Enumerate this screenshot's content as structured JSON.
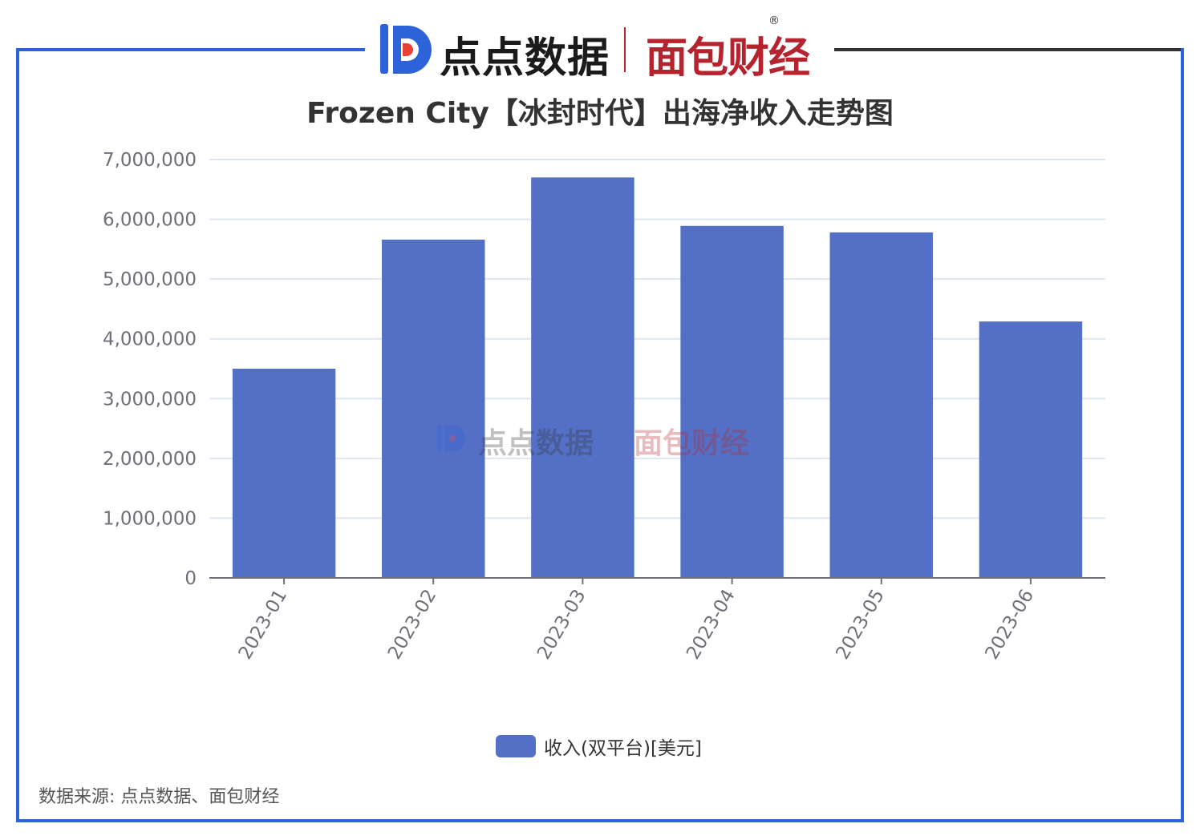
{
  "header": {
    "brand_primary": "点点数据",
    "brand_secondary": "面包财经",
    "registered_mark": "®"
  },
  "chart_data": {
    "type": "bar",
    "title": "Frozen City【冰封时代】出海净收入走势图",
    "categories": [
      "2023-01",
      "2023-02",
      "2023-03",
      "2023-04",
      "2023-05",
      "2023-06"
    ],
    "series": [
      {
        "name": "收入(双平台)[美元]",
        "values": [
          3500000,
          5660000,
          6700000,
          5890000,
          5780000,
          4290000
        ]
      }
    ],
    "yticks": [
      "0",
      "1,000,000",
      "2,000,000",
      "3,000,000",
      "4,000,000",
      "5,000,000",
      "6,000,000",
      "7,000,000"
    ],
    "ylim": [
      0,
      7000000
    ],
    "xlabel": "",
    "ylabel": "",
    "grid": true,
    "legend_position": "bottom-center",
    "bar_color": "#5470c6"
  },
  "footer": {
    "source": "数据来源: 点点数据、面包财经"
  },
  "colors": {
    "frame_left": "#2e62d9",
    "frame_right": "#333333",
    "brand_red": "#b5242e",
    "brand_blue": "#2e62d9"
  }
}
